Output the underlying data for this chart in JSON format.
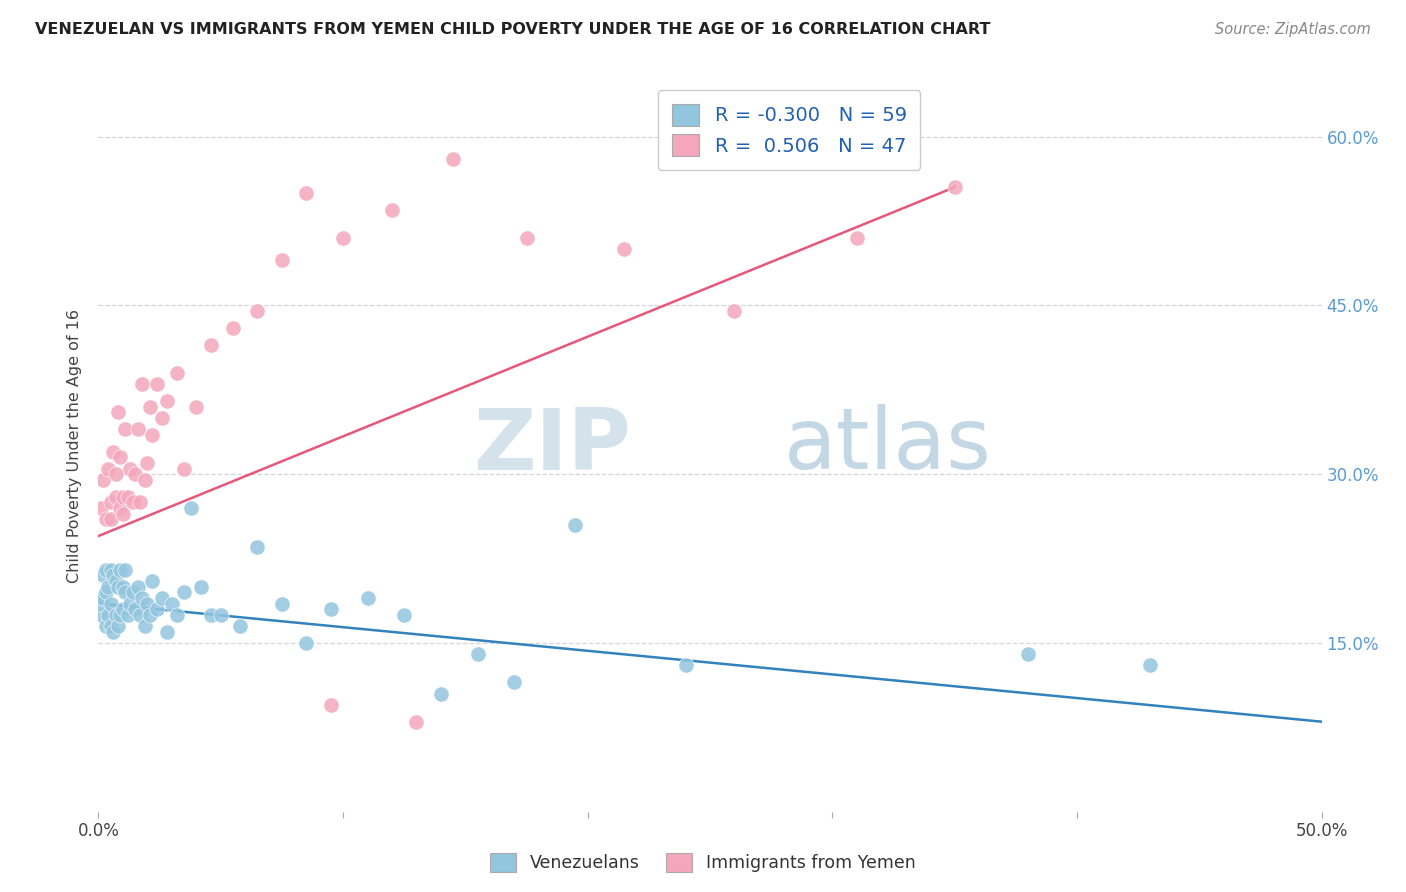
{
  "title": "VENEZUELAN VS IMMIGRANTS FROM YEMEN CHILD POVERTY UNDER THE AGE OF 16 CORRELATION CHART",
  "source": "Source: ZipAtlas.com",
  "ylabel": "Child Poverty Under the Age of 16",
  "watermark_zip": "ZIP",
  "watermark_atlas": "atlas",
  "legend_blue_r": "-0.300",
  "legend_blue_n": "59",
  "legend_pink_r": "0.506",
  "legend_pink_n": "47",
  "blue_color": "#92c5de",
  "pink_color": "#f4a6bc",
  "blue_line_color": "#3182bd",
  "pink_line_color": "#e8567a",
  "xlim": [
    0.0,
    0.5
  ],
  "ylim": [
    0.0,
    0.65
  ],
  "y_ticks": [
    0.15,
    0.3,
    0.45,
    0.6
  ],
  "y_tick_labels": [
    "15.0%",
    "30.0%",
    "45.0%",
    "60.0%"
  ],
  "x_tick_labels_show": {
    "0.0": "0.0%",
    "0.5": "50.0%"
  },
  "background_color": "#ffffff",
  "grid_color": "#d5d5e0",
  "venezuelan_x": [
    0.001,
    0.001,
    0.002,
    0.002,
    0.003,
    0.003,
    0.003,
    0.004,
    0.004,
    0.005,
    0.005,
    0.005,
    0.006,
    0.006,
    0.007,
    0.007,
    0.008,
    0.008,
    0.009,
    0.009,
    0.01,
    0.01,
    0.011,
    0.011,
    0.012,
    0.013,
    0.014,
    0.015,
    0.016,
    0.017,
    0.018,
    0.019,
    0.02,
    0.021,
    0.022,
    0.024,
    0.026,
    0.028,
    0.03,
    0.032,
    0.035,
    0.038,
    0.042,
    0.046,
    0.05,
    0.058,
    0.065,
    0.075,
    0.085,
    0.095,
    0.11,
    0.125,
    0.14,
    0.155,
    0.17,
    0.195,
    0.24,
    0.38,
    0.43
  ],
  "venezuelan_y": [
    0.175,
    0.185,
    0.19,
    0.21,
    0.165,
    0.195,
    0.215,
    0.175,
    0.2,
    0.165,
    0.185,
    0.215,
    0.16,
    0.21,
    0.175,
    0.205,
    0.165,
    0.2,
    0.175,
    0.215,
    0.18,
    0.2,
    0.195,
    0.215,
    0.175,
    0.185,
    0.195,
    0.18,
    0.2,
    0.175,
    0.19,
    0.165,
    0.185,
    0.175,
    0.205,
    0.18,
    0.19,
    0.16,
    0.185,
    0.175,
    0.195,
    0.27,
    0.2,
    0.175,
    0.175,
    0.165,
    0.235,
    0.185,
    0.15,
    0.18,
    0.19,
    0.175,
    0.105,
    0.14,
    0.115,
    0.255,
    0.13,
    0.14,
    0.13
  ],
  "yemen_x": [
    0.001,
    0.002,
    0.003,
    0.004,
    0.005,
    0.005,
    0.006,
    0.007,
    0.007,
    0.008,
    0.009,
    0.009,
    0.01,
    0.01,
    0.011,
    0.012,
    0.013,
    0.014,
    0.015,
    0.016,
    0.017,
    0.018,
    0.019,
    0.02,
    0.021,
    0.022,
    0.024,
    0.026,
    0.028,
    0.032,
    0.035,
    0.04,
    0.046,
    0.055,
    0.065,
    0.075,
    0.085,
    0.1,
    0.12,
    0.145,
    0.175,
    0.215,
    0.26,
    0.31,
    0.35,
    0.095,
    0.13
  ],
  "yemen_y": [
    0.27,
    0.295,
    0.26,
    0.305,
    0.275,
    0.26,
    0.32,
    0.28,
    0.3,
    0.355,
    0.27,
    0.315,
    0.265,
    0.28,
    0.34,
    0.28,
    0.305,
    0.275,
    0.3,
    0.34,
    0.275,
    0.38,
    0.295,
    0.31,
    0.36,
    0.335,
    0.38,
    0.35,
    0.365,
    0.39,
    0.305,
    0.36,
    0.415,
    0.43,
    0.445,
    0.49,
    0.55,
    0.51,
    0.535,
    0.58,
    0.51,
    0.5,
    0.445,
    0.51,
    0.555,
    0.095,
    0.08
  ]
}
